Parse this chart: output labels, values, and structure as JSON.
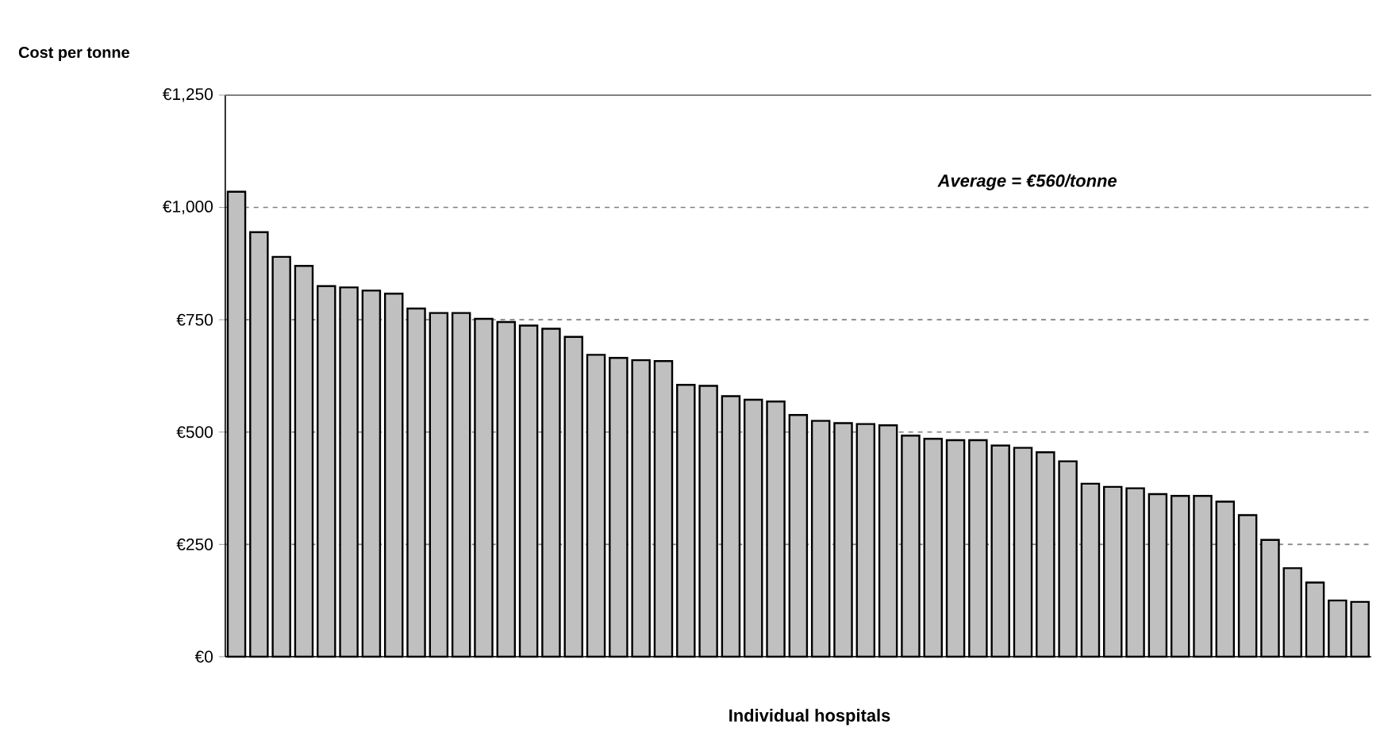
{
  "chart_data": {
    "type": "bar",
    "xlabel": "Individual hospitals",
    "ylabel": "Cost per tonne",
    "categories": [
      null,
      null,
      null,
      null,
      null,
      null,
      null,
      null,
      null,
      null,
      null,
      null,
      null,
      null,
      null,
      null,
      null,
      null,
      null,
      null,
      null,
      null,
      null,
      null,
      null,
      null,
      null,
      null,
      null,
      null,
      null,
      null,
      null,
      null,
      null,
      null,
      null,
      null,
      null,
      null,
      null,
      null,
      null,
      null,
      null,
      null,
      null,
      null,
      null,
      null,
      null
    ],
    "values": [
      1035,
      945,
      890,
      870,
      825,
      822,
      815,
      808,
      775,
      765,
      765,
      752,
      745,
      737,
      730,
      712,
      672,
      665,
      660,
      658,
      605,
      603,
      580,
      572,
      568,
      538,
      525,
      520,
      518,
      515,
      492,
      485,
      482,
      482,
      470,
      465,
      455,
      435,
      385,
      378,
      375,
      362,
      358,
      358,
      345,
      315,
      260,
      197,
      165,
      125,
      122
    ],
    "color": "#c0c0c0",
    "ylim": [
      0,
      1250
    ],
    "yticks": [
      {
        "value": 0,
        "label": "€0"
      },
      {
        "value": 250,
        "label": "€250"
      },
      {
        "value": 500,
        "label": "€500"
      },
      {
        "value": 750,
        "label": "€750"
      },
      {
        "value": 1000,
        "label": "€1,000"
      },
      {
        "value": 1250,
        "label": "€1,250"
      }
    ],
    "grid": "y",
    "annotations": [
      "Average = €560/tonne"
    ]
  }
}
